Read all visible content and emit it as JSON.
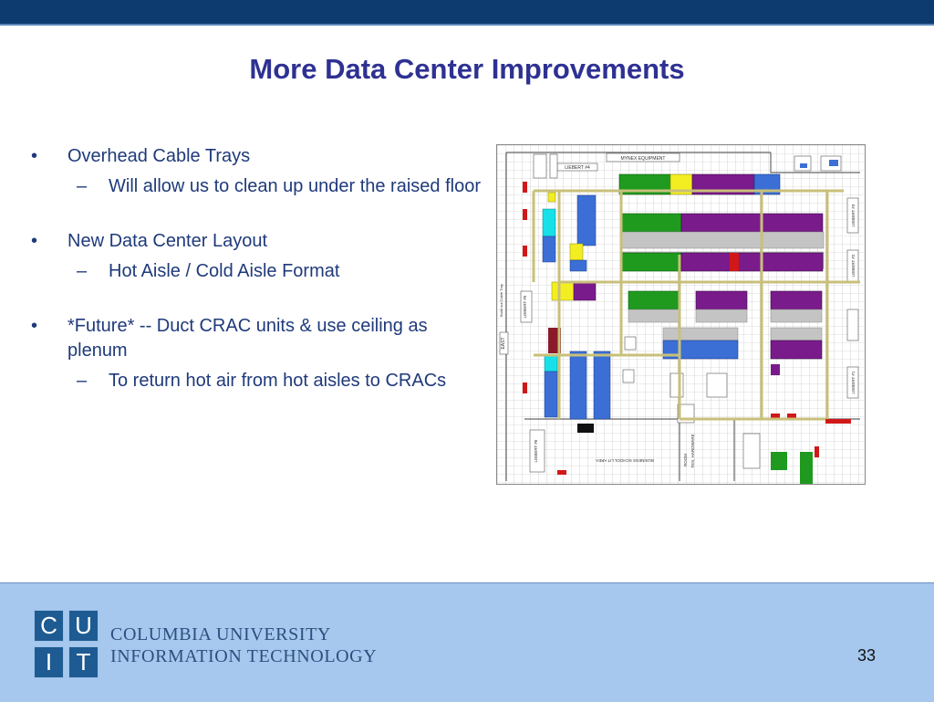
{
  "slide": {
    "title": "More Data Center Improvements",
    "bullets": [
      {
        "text": "Overhead Cable Trays",
        "sub": [
          "Will allow us to clean up under the raised floor"
        ]
      },
      {
        "text": "New Data Center Layout",
        "sub": [
          "Hot Aisle / Cold Aisle Format"
        ]
      },
      {
        "text": "*Future* -- Duct CRAC units & use ceiling as plenum",
        "sub": [
          "To return hot air from hot aisles to CRACs"
        ]
      }
    ],
    "bullet_mark": "•",
    "sub_mark": "–",
    "page_number": "33"
  },
  "floorplan": {
    "labels": {
      "mynex": "MYNEX EQUIPMENT",
      "liebert4": "LIEBERT #4",
      "liebert3": "LIEBERT #3",
      "liebert2": "LIEBERT #2",
      "liebert1": "LIEBERT #1",
      "liebert5": "LIEBERT #5",
      "liebert6": "LIEBERT #6",
      "east": "EAST",
      "business": "BUSINESS SCHOOL LIT AREA",
      "room": "ROOM",
      "hardware": "TES, HARDWARE",
      "tray": "Build out Cable Tray"
    },
    "colors": {
      "green": "#1f9a1f",
      "purple": "#7a1b8c",
      "blue": "#3b6fd6",
      "cyan": "#18e0e8",
      "yellow": "#f3ee22",
      "gray": "#c4c4c4",
      "red": "#d01818",
      "maroon": "#8a1a2a",
      "tray": "#c8c07a"
    }
  },
  "footer": {
    "logo_letters": [
      "C",
      "U",
      "I",
      "T"
    ],
    "org_line1": "COLUMBIA UNIVERSITY",
    "org_line2": "INFORMATION TECHNOLOGY"
  }
}
